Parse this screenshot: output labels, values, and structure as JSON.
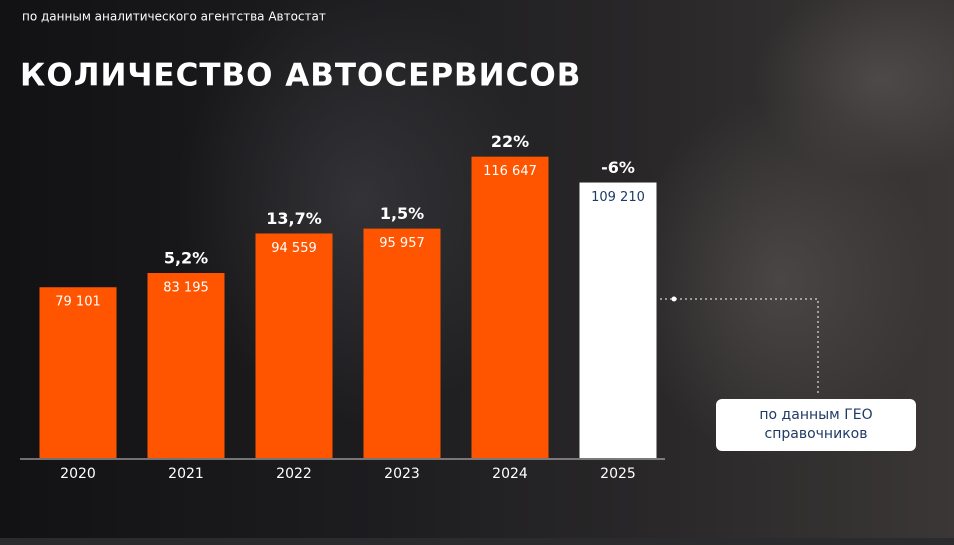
{
  "chart_data": {
    "type": "bar",
    "source": "по данным аналитического агентства Автостат",
    "title": "КОЛИЧЕСТВО АВТОСЕРВИСОВ",
    "categories": [
      "2020",
      "2021",
      "2022",
      "2023",
      "2024",
      "2025"
    ],
    "values": [
      79101,
      83195,
      94559,
      95957,
      116647,
      109210
    ],
    "value_labels": [
      "79 101",
      "83 195",
      "94 559",
      "95 957",
      "116 647",
      "109 210"
    ],
    "growth_labels": [
      null,
      "5,2%",
      "13,7%",
      "1,5%",
      "22%",
      "-6%"
    ],
    "colors": [
      "#ff5500",
      "#ff5500",
      "#ff5500",
      "#ff5500",
      "#ff5500",
      "#ffffff"
    ],
    "ylim": [
      30000,
      120000
    ],
    "note": "по данным ГЕО справочников"
  }
}
